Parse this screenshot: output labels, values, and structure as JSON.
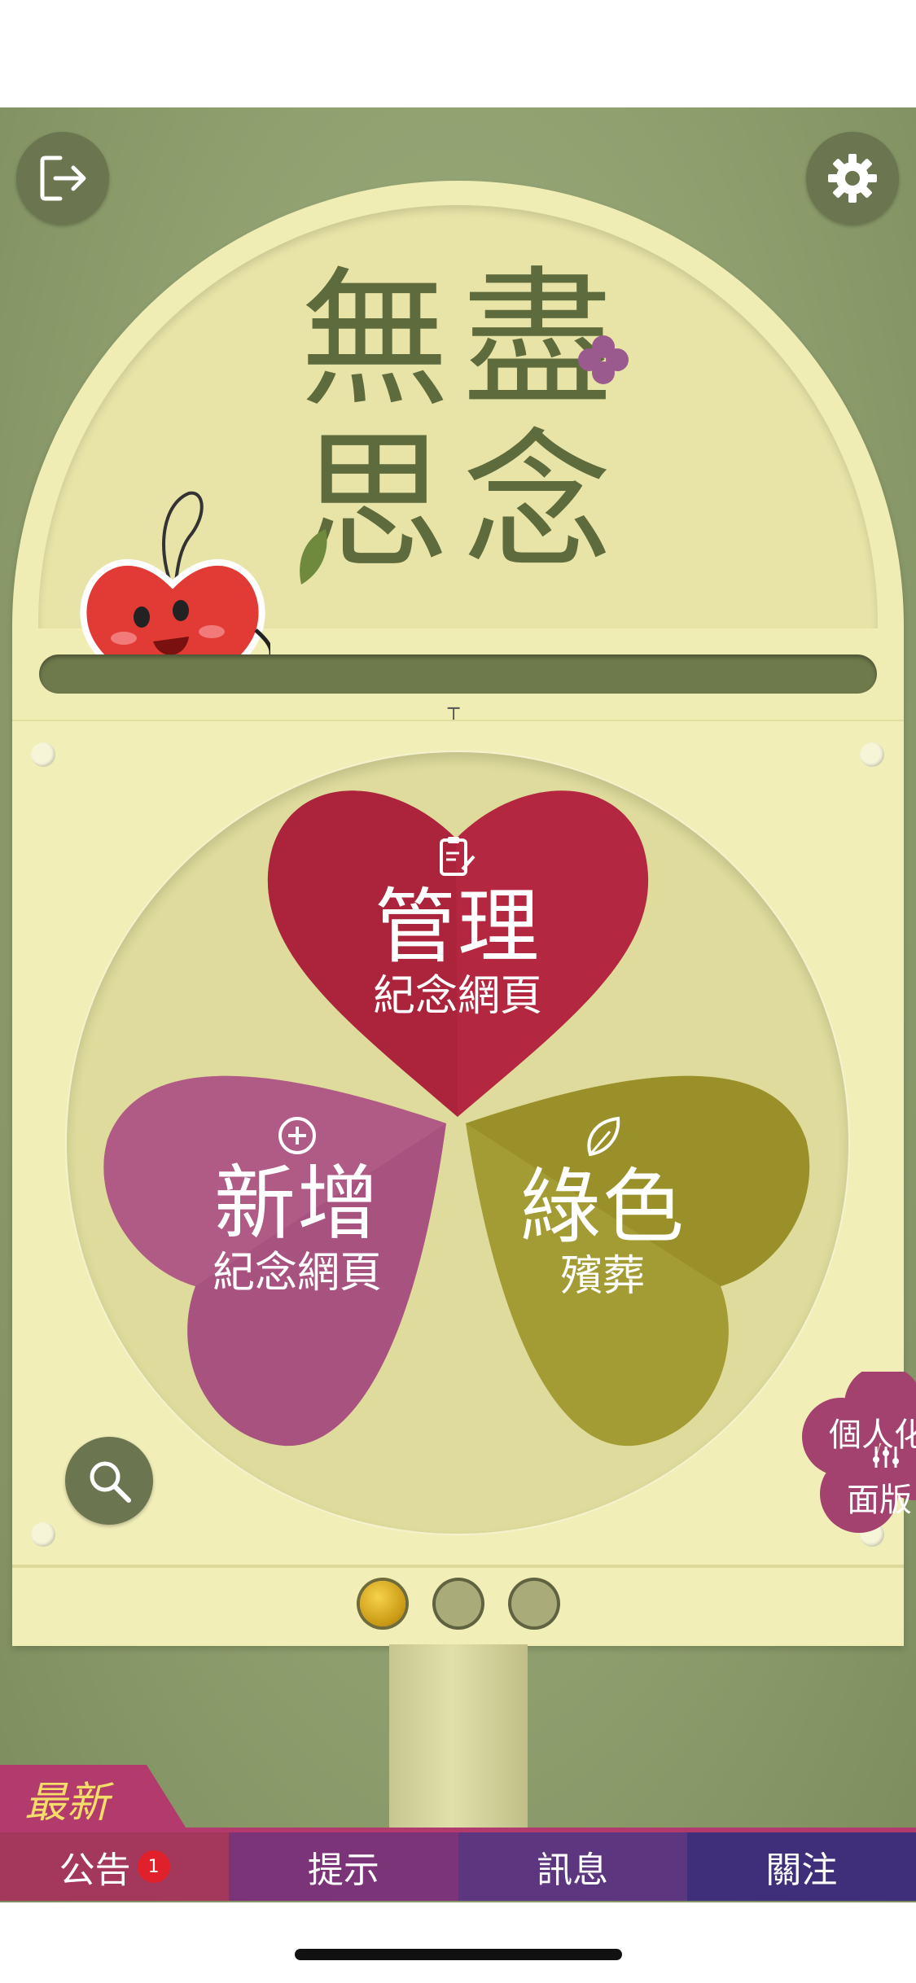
{
  "header": {
    "logout_icon": "logout-icon",
    "settings_icon": "gear-icon"
  },
  "sign": {
    "title_chars": [
      "無",
      "盡",
      "思",
      "念"
    ]
  },
  "menu": {
    "manage": {
      "title": "管理",
      "subtitle": "紀念網頁",
      "icon": "clipboard-edit-icon",
      "color": "#b42740"
    },
    "add": {
      "title": "新增",
      "subtitle": "紀念網頁",
      "icon": "plus-circle-icon",
      "color": "#a04a78"
    },
    "green": {
      "title": "綠色",
      "subtitle": "殯葬",
      "icon": "leaf-icon",
      "color": "#a39b34"
    }
  },
  "side_panel": {
    "line1": "個人化",
    "line2": "面版",
    "icon": "sliders-icon"
  },
  "pager": {
    "current": 1,
    "total": 3
  },
  "news": {
    "label": "最新",
    "tabs": [
      {
        "label": "公告",
        "badge": "1"
      },
      {
        "label": "提示"
      },
      {
        "label": "訊息"
      },
      {
        "label": "關注"
      }
    ]
  }
}
